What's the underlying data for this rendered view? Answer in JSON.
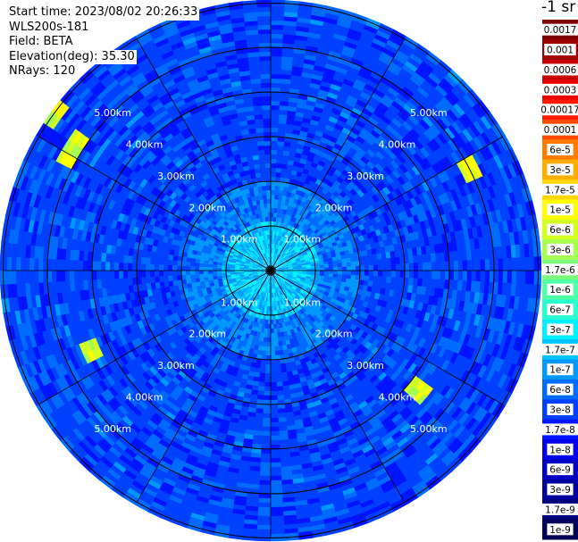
{
  "header": {
    "start_time": "Start time: 2023/08/02 20:26:33",
    "instrument": "WLS200s-181",
    "field": "Field: BETA",
    "elevation": "Elevation(deg): 35.30",
    "nrays": "NRays: 120"
  },
  "colorbar": {
    "title": "-1 sr",
    "ticks": [
      "0.0017",
      "0.001",
      "0.0006",
      "0.0003",
      "0.00017",
      "0.0001",
      "6e-5",
      "3e-5",
      "1.7e-5",
      "1e-5",
      "6e-6",
      "3e-6",
      "1.7e-6",
      "1e-6",
      "6e-7",
      "3e-7",
      "1.7e-7",
      "1e-7",
      "6e-8",
      "3e-8",
      "1.7e-8",
      "1e-8",
      "6e-9",
      "3e-9",
      "1.7e-9",
      "1e-9"
    ],
    "colors": [
      "#7f0000",
      "#9f0000",
      "#c40000",
      "#e80000",
      "#ff1a00",
      "#ff4a00",
      "#ff7c00",
      "#ffad00",
      "#ffd500",
      "#ffff00",
      "#d4ff23",
      "#a6ff51",
      "#7bff7b",
      "#51ffa6",
      "#29ffce",
      "#00f0ff",
      "#00c4ff",
      "#0098ff",
      "#006cff",
      "#0040ff",
      "#0014ff",
      "#0000e8",
      "#0000c4",
      "#00009f",
      "#00007f",
      "#00005a"
    ]
  },
  "chart_data": {
    "type": "heatmap",
    "projection": "polar (PPI scan)",
    "variable": "BETA",
    "colorbar_unit": "-1 sr",
    "n_rays": 120,
    "max_range_km": 5.0,
    "range_rings": [
      {
        "value": 1.0,
        "label": "1.00km"
      },
      {
        "value": 2.0,
        "label": "2.00km"
      },
      {
        "value": 3.0,
        "label": "3.00km"
      },
      {
        "value": 4.0,
        "label": "4.00km"
      },
      {
        "value": 5.0,
        "label": "5.00km"
      }
    ],
    "radial_spokes_deg": [
      0,
      30,
      60,
      90,
      120,
      150,
      180,
      210,
      240,
      270,
      300,
      330
    ],
    "background_level": "3e-8",
    "near_field_level": "1.7e-7 to 6e-7 (within ~1 km)",
    "hotspots": [
      {
        "azimuth_deg_from_north": 62,
        "range_km": 5.0,
        "level": "1e-5 to 3e-6"
      },
      {
        "azimuth_deg_from_north": 128,
        "range_km": 4.3,
        "level": "1e-5 to 3e-6"
      },
      {
        "azimuth_deg_from_north": 300,
        "range_km": 5.2,
        "level": "1.7e-6"
      },
      {
        "azimuth_deg_from_north": 245,
        "range_km": 4.4,
        "level": "6e-6"
      },
      {
        "azimuth_deg_from_north": 304,
        "range_km": 6.0,
        "level": "1.7e-6"
      }
    ]
  }
}
